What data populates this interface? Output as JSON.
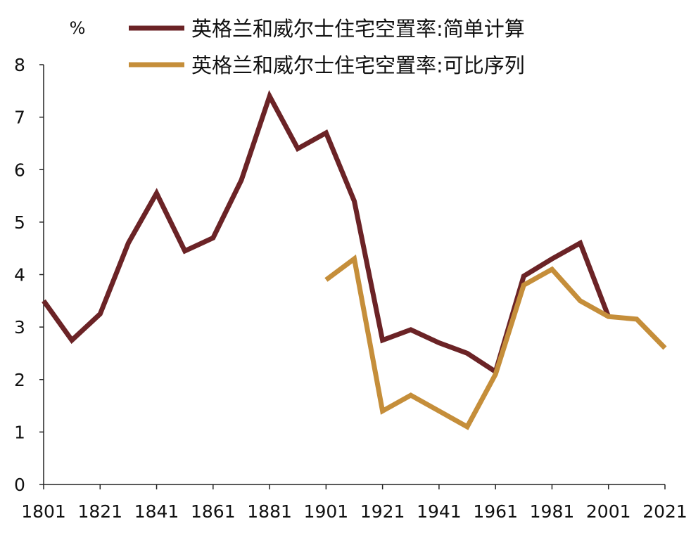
{
  "chart_data": {
    "type": "line",
    "unit_label": "%",
    "xlim": [
      1801,
      2021
    ],
    "ylim": [
      0,
      8
    ],
    "xticks": [
      "1801",
      "1821",
      "1841",
      "1861",
      "1881",
      "1901",
      "1921",
      "1941",
      "1961",
      "1981",
      "2001",
      "2021"
    ],
    "yticks": [
      "0",
      "1",
      "2",
      "3",
      "4",
      "5",
      "6",
      "7",
      "8"
    ],
    "grid": false,
    "legend_position": "top",
    "series": [
      {
        "name": "英格兰和威尔士住宅空置率:简单计算",
        "color": "#6B2326",
        "x": [
          1801,
          1811,
          1821,
          1831,
          1841,
          1851,
          1861,
          1871,
          1881,
          1891,
          1901,
          1911,
          1921,
          1931,
          1941,
          1951,
          1961,
          1971,
          1981,
          1991,
          2001
        ],
        "values": [
          3.5,
          2.75,
          3.25,
          4.6,
          5.55,
          4.45,
          4.7,
          5.8,
          7.4,
          6.4,
          6.7,
          5.4,
          2.75,
          2.95,
          2.7,
          2.5,
          2.15,
          3.97,
          4.3,
          4.6,
          3.2
        ]
      },
      {
        "name": "英格兰和威尔士住宅空置率:可比序列",
        "color": "#C58E3A",
        "x": [
          1901,
          1911,
          1921,
          1931,
          1941,
          1951,
          1961,
          1971,
          1981,
          1991,
          2001,
          2011,
          2021
        ],
        "values": [
          3.9,
          4.3,
          1.4,
          1.7,
          1.4,
          1.1,
          2.1,
          3.8,
          4.1,
          3.5,
          3.2,
          3.15,
          2.6
        ]
      }
    ]
  }
}
